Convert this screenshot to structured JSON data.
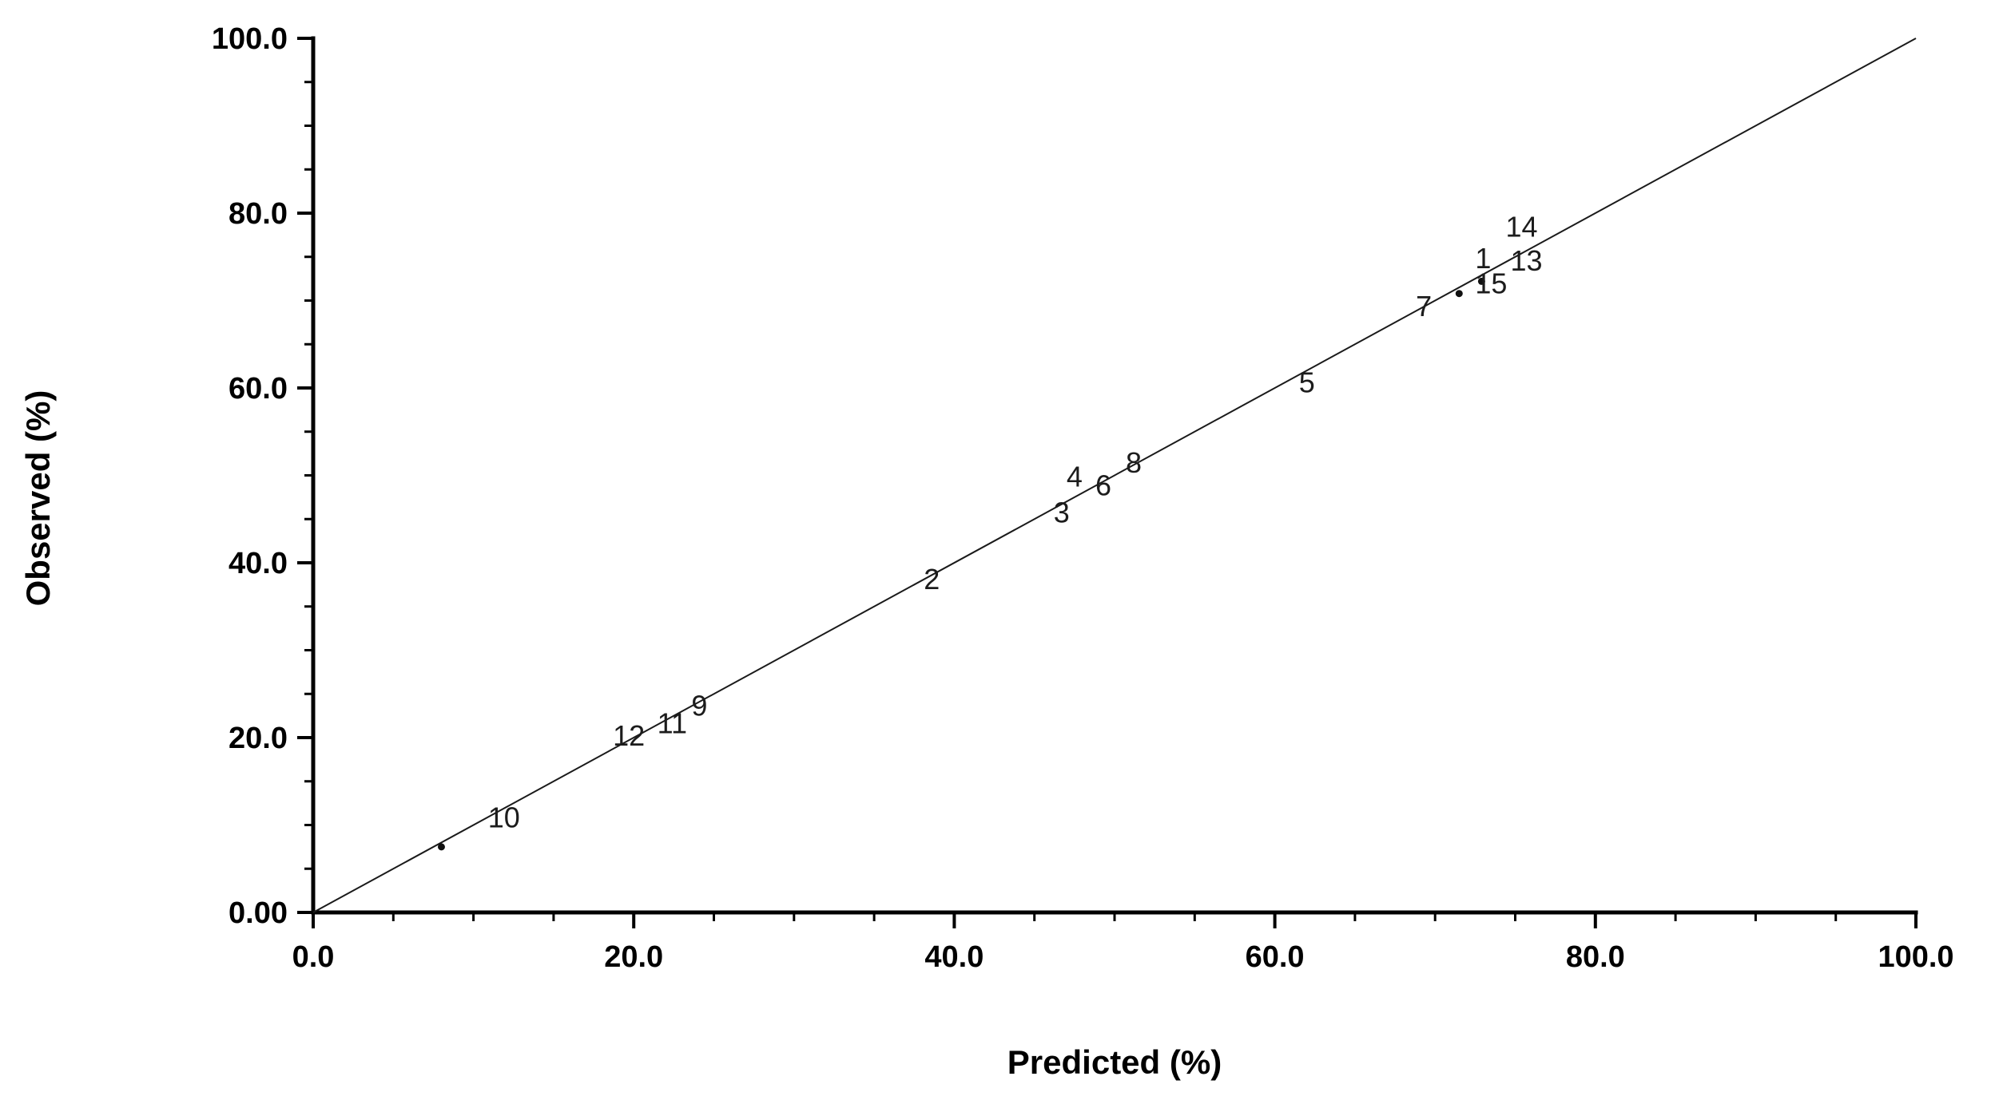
{
  "chart_data": {
    "type": "scatter",
    "title": "",
    "xlabel": "Predicted (%)",
    "ylabel": "Observed (%)",
    "xlim": [
      0,
      100
    ],
    "ylim": [
      0,
      100
    ],
    "grid": false,
    "legend": false,
    "x_tick_values": [
      0,
      20,
      40,
      60,
      80,
      100
    ],
    "x_tick_labels": [
      "0.0",
      "20.0",
      "40.0",
      "60.0",
      "80.0",
      "100.0"
    ],
    "y_tick_values": [
      0,
      20,
      40,
      60,
      80,
      100
    ],
    "y_tick_labels": [
      "0.00",
      "20.0",
      "40.0",
      "60.0",
      "80.0",
      "100.0"
    ],
    "minor_tick_step": 5,
    "identity_line": {
      "x": [
        0,
        100
      ],
      "y": [
        0,
        100
      ]
    },
    "points": [
      {
        "label": "1",
        "x": 73.0,
        "y": 74.8
      },
      {
        "label": "2",
        "x": 38.6,
        "y": 38.1
      },
      {
        "label": "3",
        "x": 46.7,
        "y": 45.7
      },
      {
        "label": "4",
        "x": 47.5,
        "y": 49.8
      },
      {
        "label": "5",
        "x": 62.0,
        "y": 60.6
      },
      {
        "label": "6",
        "x": 49.3,
        "y": 48.8
      },
      {
        "label": "7",
        "x": 69.3,
        "y": 69.3
      },
      {
        "label": "8",
        "x": 51.2,
        "y": 51.4
      },
      {
        "label": "9",
        "x": 24.1,
        "y": 23.6
      },
      {
        "label": "10",
        "x": 11.9,
        "y": 10.8
      },
      {
        "label": "11",
        "x": 22.4,
        "y": 21.6
      },
      {
        "label": "12",
        "x": 19.7,
        "y": 20.2
      },
      {
        "label": "13",
        "x": 75.7,
        "y": 74.5
      },
      {
        "label": "14",
        "x": 75.4,
        "y": 78.4
      },
      {
        "label": "15",
        "x": 73.5,
        "y": 71.9
      }
    ],
    "dot_markers": [
      {
        "x": 8.0,
        "y": 7.5
      },
      {
        "x": 71.5,
        "y": 70.8
      },
      {
        "x": 72.9,
        "y": 72.2
      }
    ],
    "colors": {
      "axis": "#000000",
      "line": "#1a1a1a",
      "labels": "#1c1c1c",
      "background": "#ffffff"
    }
  }
}
